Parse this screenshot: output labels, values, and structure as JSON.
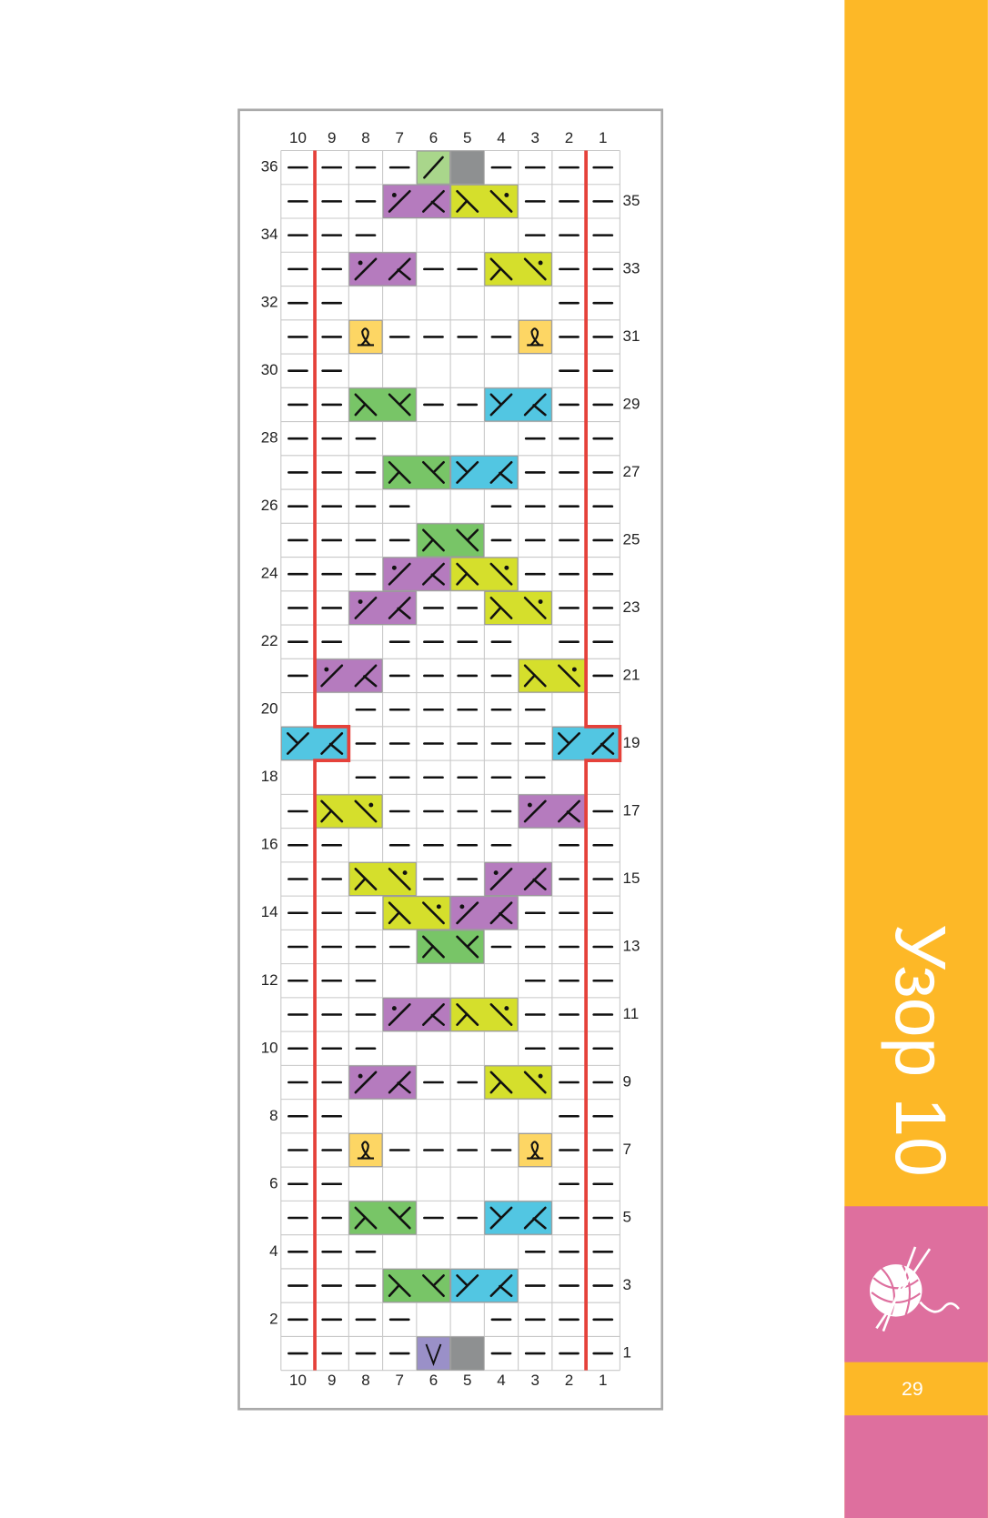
{
  "chart": {
    "column_numbers": [
      10,
      9,
      8,
      7,
      6,
      5,
      4,
      3,
      2,
      1
    ],
    "row_numbers": [
      36,
      35,
      34,
      33,
      32,
      31,
      30,
      29,
      28,
      27,
      26,
      25,
      24,
      23,
      22,
      21,
      20,
      19,
      18,
      17,
      16,
      15,
      14,
      13,
      12,
      11,
      10,
      9,
      8,
      7,
      6,
      5,
      4,
      3,
      2,
      1
    ]
  },
  "sidebar": {
    "title": "Узор 10",
    "page_number": 29
  }
}
